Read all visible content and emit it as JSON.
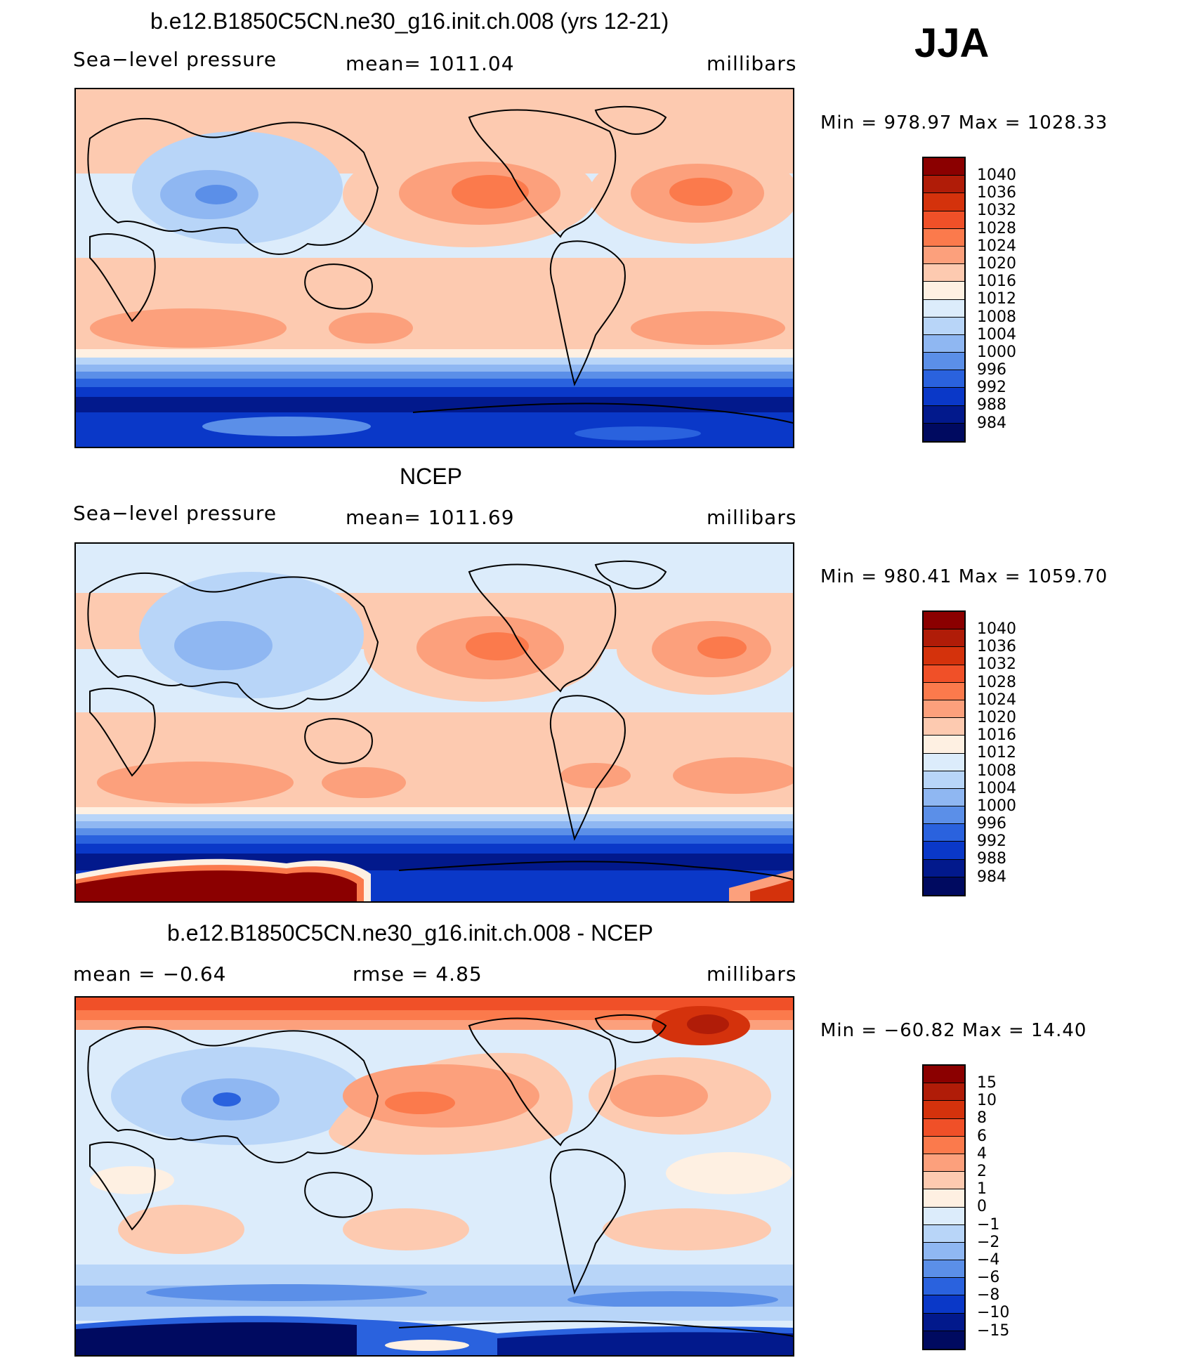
{
  "season": "JJA",
  "panels": [
    {
      "title": "b.e12.B1850C5CN.ne30_g16.init.ch.008 (yrs 12-21)",
      "left_label": "Sea−level pressure",
      "center_label": "mean=  1011.04",
      "right_label": "millibars",
      "minmax": "Min  =  978.97  Max  =  1028.33",
      "colorbar_levels": [
        "1040",
        "1036",
        "1032",
        "1028",
        "1024",
        "1020",
        "1016",
        "1012",
        "1008",
        "1004",
        "1000",
        "996",
        "992",
        "988",
        "984"
      ]
    },
    {
      "title": "NCEP",
      "left_label": "Sea−level pressure",
      "center_label": "mean=  1011.69",
      "right_label": "millibars",
      "minmax": "Min  =  980.41  Max  =  1059.70",
      "colorbar_levels": [
        "1040",
        "1036",
        "1032",
        "1028",
        "1024",
        "1020",
        "1016",
        "1012",
        "1008",
        "1004",
        "1000",
        "996",
        "992",
        "988",
        "984"
      ]
    },
    {
      "title": "b.e12.B1850C5CN.ne30_g16.init.ch.008 - NCEP",
      "left_label": "mean  =    −0.64",
      "center_label": "rmse  =     4.85",
      "right_label": "millibars",
      "minmax": "Min  =  −60.82  Max  =    14.40",
      "colorbar_levels": [
        "15",
        "10",
        "8",
        "6",
        "4",
        "2",
        "1",
        "0",
        "−1",
        "−2",
        "−4",
        "−6",
        "−8",
        "−10",
        "−15"
      ]
    }
  ],
  "colors": {
    "abs_colorbar": [
      "#8b0000",
      "#b01c08",
      "#d4320c",
      "#f05028",
      "#fb7a4c",
      "#fca07c",
      "#fdcab0",
      "#fef0e2",
      "#dcecfb",
      "#b8d5f8",
      "#8fb7f2",
      "#5b8fe8",
      "#2a62de",
      "#0a38c8",
      "#02198c",
      "#000a60"
    ],
    "diff_colorbar": [
      "#8b0000",
      "#b01c08",
      "#d4320c",
      "#f05028",
      "#fb7a4c",
      "#fca07c",
      "#fdcab0",
      "#fef0e2",
      "#dcecfb",
      "#b8d5f8",
      "#8fb7f2",
      "#5b8fe8",
      "#2a62de",
      "#0a38c8",
      "#02198c",
      "#000a60"
    ]
  }
}
